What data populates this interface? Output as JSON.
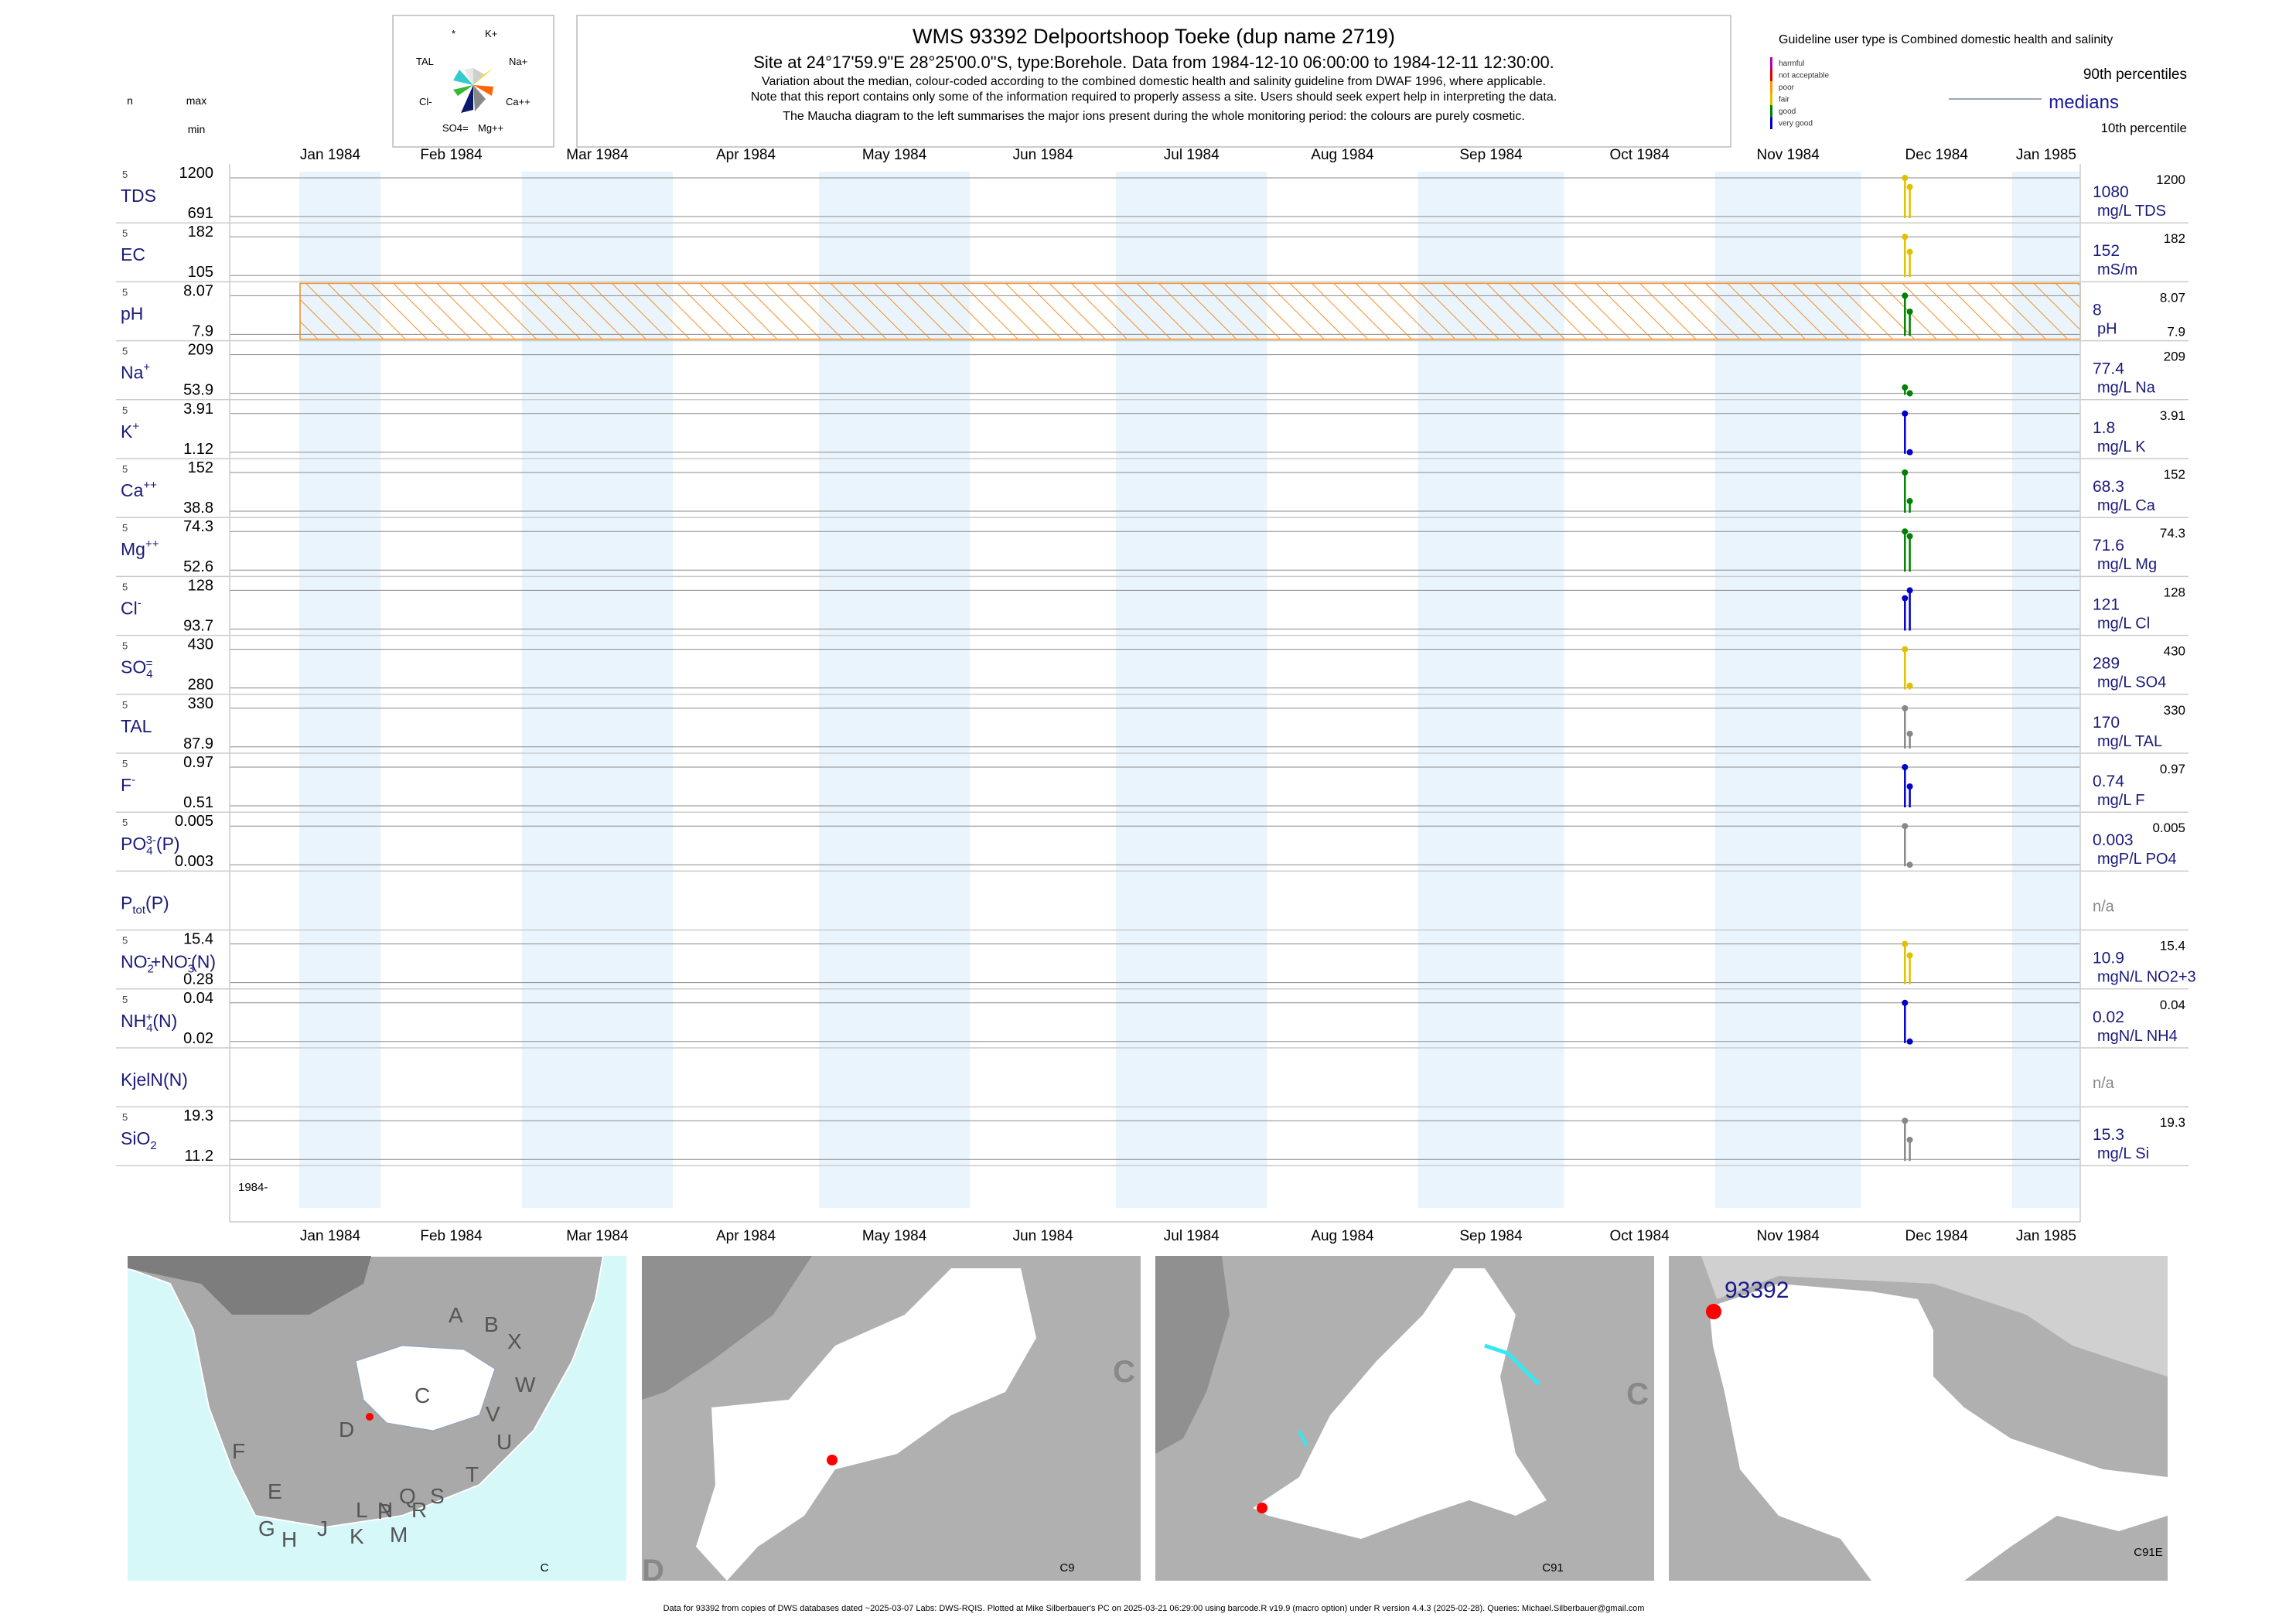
{
  "header": {
    "title": "WMS 93392  Delpoortshoop Toeke (dup name 2719)",
    "subtitle": "Site at 24°17'59.9\"E 28°25'00.0\"S, type:Borehole.  Data from 1984-12-10 06:00:00 to 1984-12-11 12:30:00.",
    "notes": [
      "Variation about the median,  colour-coded according to the combined domestic health and salinity guideline from DWAF 1996, where applicable.",
      "Note that this report contains only some of the information required to properly assess a site. Users should seek expert help in interpreting the data.",
      "The Maucha diagram to the left summarises the major ions present during the whole monitoring period: the colours are purely cosmetic."
    ]
  },
  "column_headers": {
    "n": "n",
    "max": "max",
    "min": "min"
  },
  "maucha": {
    "labels": [
      "*",
      "K+",
      "TAL",
      "Na+",
      "Cl-",
      "Ca++",
      "SO4=",
      "Mg++"
    ]
  },
  "legend": {
    "title": "Guideline user type is Combined domestic health and salinity",
    "classes": [
      {
        "label": "harmful",
        "color": "#b000b0"
      },
      {
        "label": "not acceptable",
        "color": "#e00000"
      },
      {
        "label": "poor",
        "color": "#ff9900"
      },
      {
        "label": "fair",
        "color": "#e0c000"
      },
      {
        "label": "good",
        "color": "#008000"
      },
      {
        "label": "very good",
        "color": "#0000cc"
      }
    ],
    "p90": "90th percentiles",
    "medians": "medians",
    "p10": "10th percentile"
  },
  "axis": {
    "months": [
      "Jan 1984",
      "Feb 1984",
      "Mar 1984",
      "Apr 1984",
      "May 1984",
      "Jun 1984",
      "Jul 1984",
      "Aug 1984",
      "Sep 1984",
      "Oct 1984",
      "Nov 1984",
      "Dec 1984",
      "Jan 1985"
    ],
    "start_label": "1984-"
  },
  "chart_data": {
    "type": "line",
    "x_range": [
      "1984-01-01",
      "1985-01-15"
    ],
    "sample_dates": [
      "1984-12-10",
      "1984-12-11"
    ],
    "panels": [
      {
        "label": "TDS",
        "n": "5",
        "max": "1200",
        "min": "691",
        "median": "1080",
        "unit": "mg/L TDS",
        "p90": "1200",
        "p10": "",
        "y": [
          691,
          1200
        ],
        "samples": [
          1200,
          1080
        ],
        "color": "#e0c000"
      },
      {
        "label": "EC",
        "n": "5",
        "max": "182",
        "min": "105",
        "median": "152",
        "unit": "mS/m",
        "p90": "182",
        "p10": "",
        "y": [
          105,
          182
        ],
        "samples": [
          182,
          152
        ],
        "color": "#e0c000"
      },
      {
        "label": "pH",
        "n": "5",
        "max": "8.07",
        "min": "7.9",
        "median": "8",
        "unit": "pH",
        "p90": "8.07",
        "p10": "7.9",
        "y": [
          7.9,
          8.07
        ],
        "samples": [
          8.07,
          8.0
        ],
        "color": "#008000",
        "hatched": true
      },
      {
        "label": "Na",
        "sup": "+",
        "n": "5",
        "max": "209",
        "min": "53.9",
        "median": "77.4",
        "unit": "mg/L Na",
        "p90": "209",
        "p10": "",
        "y": [
          53.9,
          209
        ],
        "samples": [
          77.4,
          53.9
        ],
        "color": "#008000"
      },
      {
        "label": "K",
        "sup": "+",
        "n": "5",
        "max": "3.91",
        "min": "1.12",
        "median": "1.8",
        "unit": "mg/L K",
        "p90": "3.91",
        "p10": "",
        "y": [
          1.12,
          3.91
        ],
        "samples": [
          3.91,
          1.12
        ],
        "color": "#0000cc"
      },
      {
        "label": "Ca",
        "sup": "++",
        "n": "5",
        "max": "152",
        "min": "38.8",
        "median": "68.3",
        "unit": "mg/L Ca",
        "p90": "152",
        "p10": "",
        "y": [
          38.8,
          152
        ],
        "samples": [
          152,
          68.3
        ],
        "color": "#008000"
      },
      {
        "label": "Mg",
        "sup": "++",
        "n": "5",
        "max": "74.3",
        "min": "52.6",
        "median": "71.6",
        "unit": "mg/L Mg",
        "p90": "74.3",
        "p10": "",
        "y": [
          52.6,
          74.3
        ],
        "samples": [
          74.3,
          71.6
        ],
        "color": "#008000"
      },
      {
        "label": "Cl",
        "sup": "-",
        "n": "5",
        "max": "128",
        "min": "93.7",
        "median": "121",
        "unit": "mg/L Cl",
        "p90": "128",
        "p10": "",
        "y": [
          93.7,
          128
        ],
        "samples": [
          121,
          128
        ],
        "color": "#0000cc"
      },
      {
        "label": "SO",
        "sub": "4",
        "sup": "=",
        "n": "5",
        "max": "430",
        "min": "280",
        "median": "289",
        "unit": "mg/L SO4",
        "p90": "430",
        "p10": "",
        "y": [
          280,
          430
        ],
        "samples": [
          430,
          289
        ],
        "color": "#e0c000"
      },
      {
        "label": "TAL",
        "n": "5",
        "max": "330",
        "min": "87.9",
        "median": "170",
        "unit": "mg/L TAL",
        "p90": "330",
        "p10": "",
        "y": [
          87.9,
          330
        ],
        "samples": [
          330,
          170
        ],
        "color": "#888888"
      },
      {
        "label": "F",
        "sup": "-",
        "n": "5",
        "max": "0.97",
        "min": "0.51",
        "median": "0.74",
        "unit": "mg/L F",
        "p90": "0.97",
        "p10": "",
        "y": [
          0.51,
          0.97
        ],
        "samples": [
          0.97,
          0.74
        ],
        "color": "#0000cc"
      },
      {
        "label": "PO",
        "sub": "4",
        "sup": "3-",
        "suffix": "(P)",
        "n": "5",
        "max": "0.005",
        "min": "0.003",
        "median": "0.003",
        "unit": "mgP/L PO4",
        "p90": "0.005",
        "p10": "",
        "y": [
          0.003,
          0.005
        ],
        "samples": [
          0.005,
          0.003
        ],
        "color": "#888888"
      },
      {
        "label": "P",
        "sub": "tot",
        "suffix": "(P)",
        "n": "",
        "max": "",
        "min": "",
        "median": "",
        "unit": "",
        "p90": "",
        "p10": "",
        "na": "n/a",
        "empty": true
      },
      {
        "label": "NO",
        "sub": "2",
        "sup": "-",
        "suffix": "+NO",
        "sub2": "3",
        "sup2": "-",
        "suffix2": "(N)",
        "n": "5",
        "max": "15.4",
        "min": "0.28",
        "median": "10.9",
        "unit": "mgN/L NO2+3",
        "p90": "15.4",
        "p10": "",
        "y": [
          0.28,
          15.4
        ],
        "samples": [
          15.4,
          10.9
        ],
        "color": "#e0c000"
      },
      {
        "label": "NH",
        "sub": "4",
        "sup": "+",
        "suffix": "(N)",
        "n": "5",
        "max": "0.04",
        "min": "0.02",
        "median": "0.02",
        "unit": "mgN/L NH4",
        "p90": "0.04",
        "p10": "",
        "y": [
          0.02,
          0.04
        ],
        "samples": [
          0.04,
          0.02
        ],
        "color": "#0000cc"
      },
      {
        "label": "KjelN(N)",
        "n": "",
        "max": "",
        "min": "",
        "median": "",
        "unit": "",
        "p90": "",
        "p10": "",
        "na": "n/a",
        "empty": true
      },
      {
        "label": "SiO",
        "sub": "2",
        "n": "5",
        "max": "19.3",
        "min": "11.2",
        "median": "15.3",
        "unit": "mg/L Si",
        "p90": "19.3",
        "p10": "",
        "y": [
          11.2,
          19.3
        ],
        "samples": [
          19.3,
          15.3
        ],
        "color": "#888888"
      }
    ]
  },
  "maps": [
    {
      "label": "C",
      "letters": [
        "A",
        "B",
        "X",
        "W",
        "V",
        "U",
        "T",
        "S",
        "R",
        "Q",
        "P",
        "M",
        "N",
        "L",
        "K",
        "J",
        "H",
        "G",
        "E",
        "F",
        "D",
        "C"
      ]
    },
    {
      "label": "C9",
      "letters": [
        "C",
        "D"
      ]
    },
    {
      "label": "C91",
      "letters": [
        "C"
      ]
    },
    {
      "label": "C91E",
      "site": "93392"
    }
  ],
  "footer": "Data for 93392 from copies of DWS databases dated ~2025-03-07 Labs: DWS-RQIS. Plotted at Mike Silberbauer's PC on 2025-03-21 06:29:00 using barcode.R v19.9 (macro option) under R version 4.4.3 (2025-02-28). Queries: Michael.Silberbauer@gmail.com"
}
